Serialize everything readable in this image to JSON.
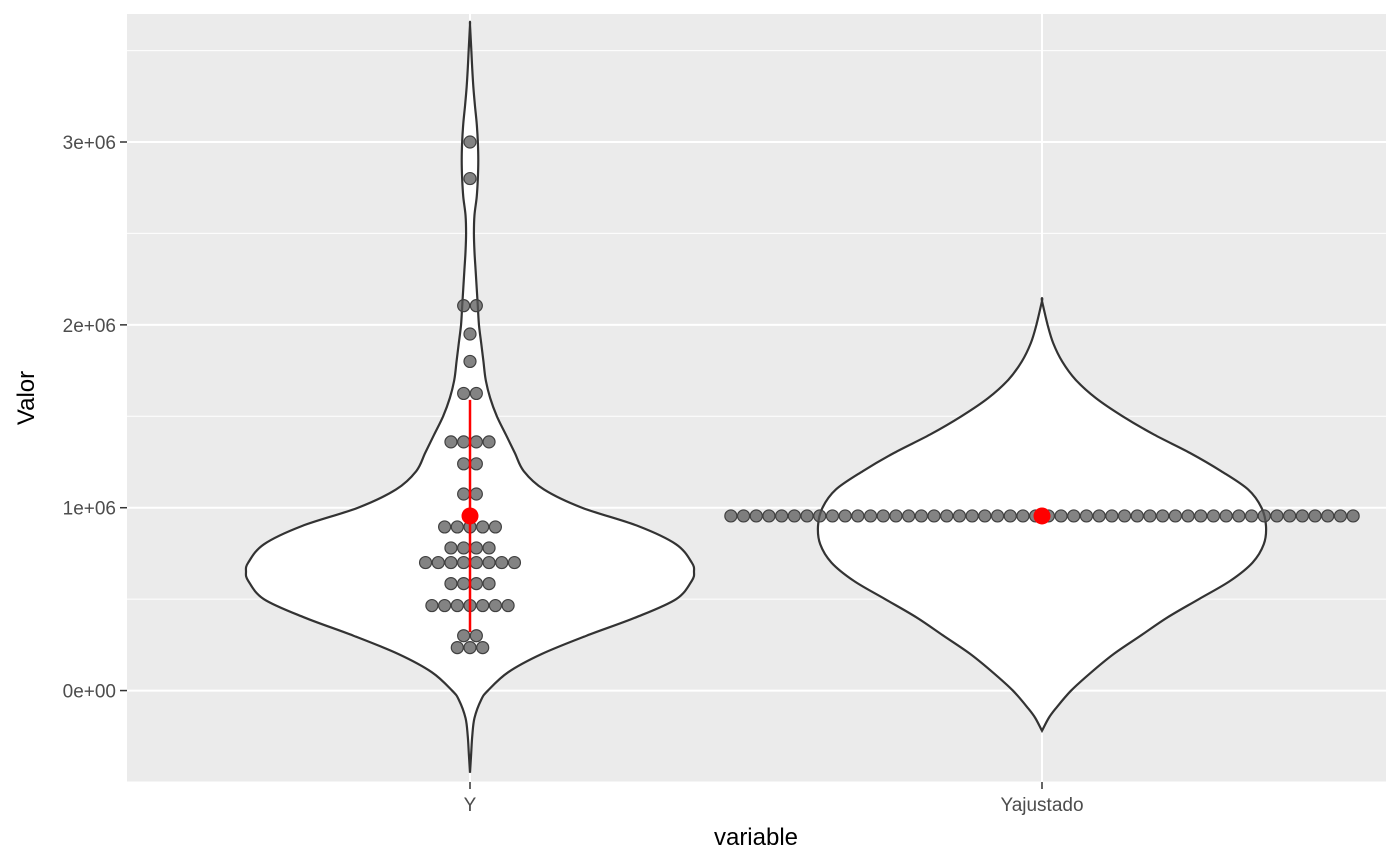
{
  "chart_data": {
    "type": "violin",
    "title": "",
    "xlabel": "variable",
    "ylabel": "Valor",
    "categories": [
      "Y",
      "Yajustado"
    ],
    "ylim": [
      -500000,
      3700000
    ],
    "yticks": [
      0,
      1000000,
      2000000,
      3000000
    ],
    "ytick_labels": [
      "0e+00",
      "1e+06",
      "2e+06",
      "3e+06"
    ],
    "grid": true,
    "background": "#ebebeb",
    "colors": {
      "violin_fill": "#ffffff",
      "violin_outline": "#333333",
      "points": "#595959",
      "summary": "#ff0000"
    },
    "series": [
      {
        "category": "Y",
        "violin": {
          "y_min": -450000,
          "y_max": 3640000,
          "profile": [
            [
              -450000,
              0.0
            ],
            [
              -350000,
              0.005
            ],
            [
              -250000,
              0.01
            ],
            [
              -150000,
              0.02
            ],
            [
              -50000,
              0.05
            ],
            [
              0,
              0.08
            ],
            [
              100000,
              0.17
            ],
            [
              200000,
              0.32
            ],
            [
              300000,
              0.52
            ],
            [
              400000,
              0.74
            ],
            [
              500000,
              0.92
            ],
            [
              600000,
              0.99
            ],
            [
              650000,
              1.0
            ],
            [
              700000,
              0.99
            ],
            [
              800000,
              0.92
            ],
            [
              900000,
              0.75
            ],
            [
              1000000,
              0.5
            ],
            [
              1100000,
              0.33
            ],
            [
              1200000,
              0.24
            ],
            [
              1300000,
              0.2
            ],
            [
              1400000,
              0.16
            ],
            [
              1500000,
              0.12
            ],
            [
              1600000,
              0.09
            ],
            [
              1700000,
              0.07
            ],
            [
              1800000,
              0.06
            ],
            [
              1900000,
              0.05
            ],
            [
              2000000,
              0.04
            ],
            [
              2100000,
              0.035
            ],
            [
              2200000,
              0.03
            ],
            [
              2300000,
              0.025
            ],
            [
              2400000,
              0.02
            ],
            [
              2500000,
              0.0175
            ],
            [
              2600000,
              0.02
            ],
            [
              2700000,
              0.03
            ],
            [
              2800000,
              0.035
            ],
            [
              2900000,
              0.037
            ],
            [
              3000000,
              0.035
            ],
            [
              3100000,
              0.03
            ],
            [
              3200000,
              0.022
            ],
            [
              3300000,
              0.015
            ],
            [
              3400000,
              0.01
            ],
            [
              3500000,
              0.006
            ],
            [
              3640000,
              0.0
            ]
          ]
        },
        "points": [
          {
            "value": 235000,
            "count": 3
          },
          {
            "value": 300000,
            "count": 2
          },
          {
            "value": 465000,
            "count": 7
          },
          {
            "value": 585000,
            "count": 4
          },
          {
            "value": 700000,
            "count": 8
          },
          {
            "value": 780000,
            "count": 4
          },
          {
            "value": 895000,
            "count": 5
          },
          {
            "value": 1075000,
            "count": 2
          },
          {
            "value": 1240000,
            "count": 2
          },
          {
            "value": 1360000,
            "count": 4
          },
          {
            "value": 1625000,
            "count": 2
          },
          {
            "value": 1800000,
            "count": 1
          },
          {
            "value": 1950000,
            "count": 1
          },
          {
            "value": 2105000,
            "count": 2
          },
          {
            "value": 2800000,
            "count": 1
          },
          {
            "value": 3000000,
            "count": 1
          }
        ],
        "summary": {
          "mean": 955000,
          "lower": 320000,
          "upper": 1590000
        }
      },
      {
        "category": "Yajustado",
        "violin": {
          "y_min": -220000,
          "y_max": 2130000,
          "profile": [
            [
              -220000,
              0.0
            ],
            [
              -150000,
              0.03
            ],
            [
              -100000,
              0.06
            ],
            [
              0,
              0.13
            ],
            [
              100000,
              0.22
            ],
            [
              200000,
              0.32
            ],
            [
              300000,
              0.44
            ],
            [
              400000,
              0.56
            ],
            [
              500000,
              0.7
            ],
            [
              600000,
              0.84
            ],
            [
              700000,
              0.94
            ],
            [
              800000,
              0.99
            ],
            [
              900000,
              1.0
            ],
            [
              1000000,
              0.98
            ],
            [
              1100000,
              0.92
            ],
            [
              1200000,
              0.8
            ],
            [
              1300000,
              0.66
            ],
            [
              1400000,
              0.5
            ],
            [
              1500000,
              0.36
            ],
            [
              1600000,
              0.24
            ],
            [
              1700000,
              0.15
            ],
            [
              1800000,
              0.09
            ],
            [
              1900000,
              0.05
            ],
            [
              2000000,
              0.025
            ],
            [
              2130000,
              0.0
            ]
          ]
        },
        "points": [
          {
            "value": 955000,
            "count": 50
          }
        ],
        "summary": {
          "mean": 955000,
          "lower": 955000,
          "upper": 955000
        }
      }
    ]
  }
}
